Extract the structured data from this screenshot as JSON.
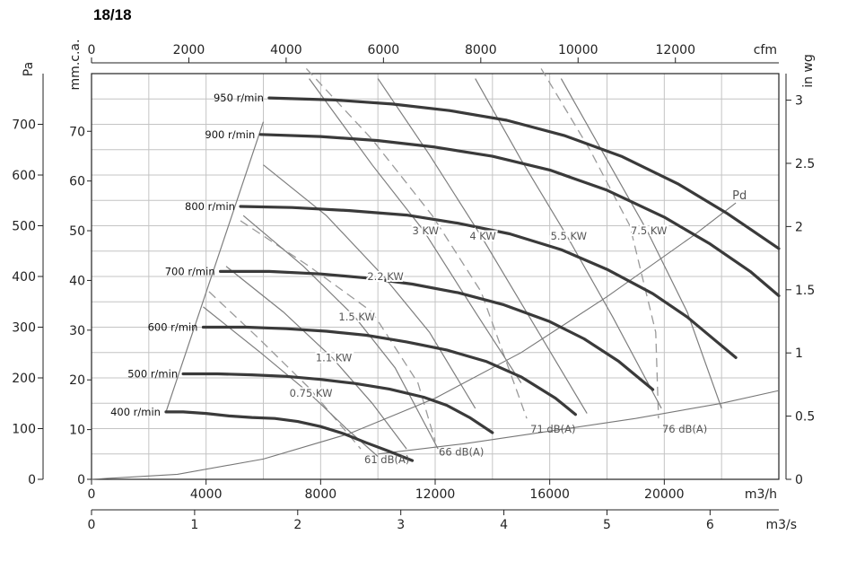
{
  "title": "18/18",
  "chart_data": {
    "type": "line",
    "title": "18/18",
    "x_axis_bottom": {
      "label": "m3/h",
      "range": [
        0,
        24000
      ],
      "ticks": [
        0,
        4000,
        8000,
        12000,
        16000,
        20000
      ]
    },
    "x_axis_m3s": {
      "label": "m3/s",
      "range": [
        0,
        6.667
      ],
      "ticks": [
        0,
        1,
        2,
        3,
        4,
        5,
        6
      ]
    },
    "x_axis_top": {
      "label": "cfm",
      "range": [
        0,
        14126
      ],
      "ticks": [
        0,
        2000,
        4000,
        6000,
        8000,
        10000,
        12000
      ]
    },
    "y_axis_left_pa": {
      "label": "Pa",
      "range": [
        0,
        800
      ],
      "ticks": [
        0,
        100,
        200,
        300,
        400,
        500,
        600,
        700
      ]
    },
    "y_axis_left_mmca": {
      "label": "mm.c.a.",
      "range": [
        0,
        81.6
      ],
      "ticks": [
        0,
        10,
        20,
        30,
        40,
        50,
        60,
        70
      ]
    },
    "y_axis_right_inwg": {
      "label": "in wg",
      "range": [
        0,
        3.21
      ],
      "ticks": [
        "0",
        "0.5",
        "1",
        "1.5",
        "2",
        "2.5",
        "3"
      ],
      "tick_values": [
        0,
        0.5,
        1,
        1.5,
        2,
        2.5,
        3
      ]
    },
    "grid": true,
    "series": [
      {
        "name": "400 r/min",
        "points": [
          [
            2600,
            133
          ],
          [
            3200,
            133
          ],
          [
            4000,
            130
          ],
          [
            4800,
            125
          ],
          [
            5600,
            122
          ],
          [
            6400,
            120
          ],
          [
            7200,
            114
          ],
          [
            8000,
            104
          ],
          [
            8800,
            90
          ],
          [
            9600,
            72
          ],
          [
            10400,
            55
          ],
          [
            11200,
            37
          ]
        ]
      },
      {
        "name": "500 r/min",
        "points": [
          [
            3200,
            208
          ],
          [
            4400,
            208
          ],
          [
            5600,
            206
          ],
          [
            6800,
            203
          ],
          [
            8000,
            197
          ],
          [
            9200,
            189
          ],
          [
            10400,
            178
          ],
          [
            11600,
            162
          ],
          [
            12400,
            146
          ],
          [
            13200,
            122
          ],
          [
            14000,
            92
          ]
        ]
      },
      {
        "name": "600 r/min",
        "points": [
          [
            3900,
            300
          ],
          [
            5400,
            300
          ],
          [
            6800,
            297
          ],
          [
            8200,
            292
          ],
          [
            9600,
            284
          ],
          [
            11000,
            271
          ],
          [
            12400,
            255
          ],
          [
            13800,
            232
          ],
          [
            15000,
            202
          ],
          [
            16200,
            160
          ],
          [
            16900,
            128
          ]
        ]
      },
      {
        "name": "700 r/min",
        "points": [
          [
            4500,
            410
          ],
          [
            6200,
            410
          ],
          [
            8000,
            405
          ],
          [
            9600,
            397
          ],
          [
            11200,
            385
          ],
          [
            12800,
            368
          ],
          [
            14400,
            344
          ],
          [
            16000,
            311
          ],
          [
            17200,
            277
          ],
          [
            18400,
            233
          ],
          [
            19600,
            177
          ]
        ]
      },
      {
        "name": "800 r/min",
        "points": [
          [
            5200,
            538
          ],
          [
            7000,
            536
          ],
          [
            9000,
            530
          ],
          [
            11000,
            521
          ],
          [
            12800,
            505
          ],
          [
            14600,
            484
          ],
          [
            16400,
            453
          ],
          [
            18000,
            414
          ],
          [
            19600,
            366
          ],
          [
            20800,
            320
          ],
          [
            21800,
            273
          ],
          [
            22500,
            240
          ]
        ]
      },
      {
        "name": "900 r/min",
        "points": [
          [
            5900,
            680
          ],
          [
            8000,
            676
          ],
          [
            10000,
            668
          ],
          [
            12000,
            655
          ],
          [
            14000,
            637
          ],
          [
            16000,
            610
          ],
          [
            18000,
            570
          ],
          [
            20000,
            517
          ],
          [
            21600,
            464
          ],
          [
            23000,
            410
          ],
          [
            24000,
            362
          ]
        ]
      },
      {
        "name": "950 r/min",
        "points": [
          [
            6200,
            752
          ],
          [
            8500,
            748
          ],
          [
            10500,
            740
          ],
          [
            12500,
            727
          ],
          [
            14500,
            708
          ],
          [
            16500,
            678
          ],
          [
            18500,
            637
          ],
          [
            20500,
            582
          ],
          [
            22200,
            524
          ],
          [
            23400,
            478
          ],
          [
            24000,
            455
          ]
        ]
      }
    ],
    "boundary_line": {
      "points": [
        [
          2600,
          133
        ],
        [
          6000,
          705
        ]
      ]
    },
    "power_lines": [
      {
        "label": "0.75 KW",
        "points": [
          [
            3900,
            340
          ],
          [
            5900,
            250
          ],
          [
            7600,
            170
          ],
          [
            8900,
            100
          ],
          [
            10000,
            45
          ]
        ]
      },
      {
        "label": "1.1 KW",
        "points": [
          [
            4700,
            420
          ],
          [
            6700,
            330
          ],
          [
            8400,
            240
          ],
          [
            9800,
            150
          ],
          [
            11000,
            60
          ]
        ]
      },
      {
        "label": "1.5 KW",
        "points": [
          [
            5300,
            520
          ],
          [
            7400,
            420
          ],
          [
            9200,
            320
          ],
          [
            10600,
            220
          ],
          [
            12100,
            60
          ]
        ]
      },
      {
        "label": "2.2 KW",
        "points": [
          [
            6000,
            620
          ],
          [
            8200,
            520
          ],
          [
            10200,
            400
          ],
          [
            11800,
            290
          ],
          [
            13400,
            140
          ]
        ]
      },
      {
        "label": "3 KW",
        "points": [
          [
            7600,
            790
          ],
          [
            9800,
            620
          ],
          [
            11600,
            490
          ],
          [
            13400,
            330
          ],
          [
            15000,
            190
          ]
        ]
      },
      {
        "label": "4 KW",
        "points": [
          [
            10000,
            790
          ],
          [
            11800,
            640
          ],
          [
            13600,
            480
          ],
          [
            15400,
            310
          ],
          [
            17300,
            130
          ]
        ]
      },
      {
        "label": "5.5 KW",
        "points": [
          [
            13400,
            790
          ],
          [
            15000,
            630
          ],
          [
            16600,
            480
          ],
          [
            18200,
            320
          ],
          [
            19900,
            140
          ]
        ]
      },
      {
        "label": "7.5 KW",
        "points": [
          [
            16400,
            790
          ],
          [
            17900,
            640
          ],
          [
            19400,
            490
          ],
          [
            20800,
            330
          ],
          [
            22000,
            140
          ]
        ]
      }
    ],
    "noise_lines": [
      {
        "label": "61 dB(A)",
        "points": [
          [
            4100,
            370
          ],
          [
            5800,
            280
          ],
          [
            7600,
            180
          ],
          [
            9400,
            60
          ]
        ]
      },
      {
        "label": "66 dB(A)",
        "points": [
          [
            5200,
            510
          ],
          [
            7600,
            420
          ],
          [
            9800,
            330
          ],
          [
            11400,
            190
          ],
          [
            12000,
            75
          ]
        ]
      },
      {
        "label": "71 dB(A)",
        "points": [
          [
            7500,
            810
          ],
          [
            9800,
            670
          ],
          [
            11900,
            520
          ],
          [
            13600,
            370
          ],
          [
            15200,
            120
          ]
        ]
      },
      {
        "label": "76 dB(A)",
        "points": [
          [
            15700,
            810
          ],
          [
            17400,
            650
          ],
          [
            18800,
            500
          ],
          [
            19700,
            290
          ],
          [
            19800,
            120
          ]
        ]
      }
    ],
    "dynamic_pressure": {
      "label": "Pd",
      "points": [
        [
          0,
          0
        ],
        [
          3000,
          10
        ],
        [
          6000,
          40
        ],
        [
          9000,
          90
        ],
        [
          12000,
          160
        ],
        [
          15000,
          250
        ],
        [
          18000,
          360
        ],
        [
          21000,
          480
        ],
        [
          22500,
          545
        ]
      ]
    },
    "system_curve": {
      "points": [
        [
          10000,
          50
        ],
        [
          13000,
          70
        ],
        [
          16000,
          95
        ],
        [
          19000,
          120
        ],
        [
          22000,
          150
        ],
        [
          24000,
          175
        ]
      ]
    }
  }
}
